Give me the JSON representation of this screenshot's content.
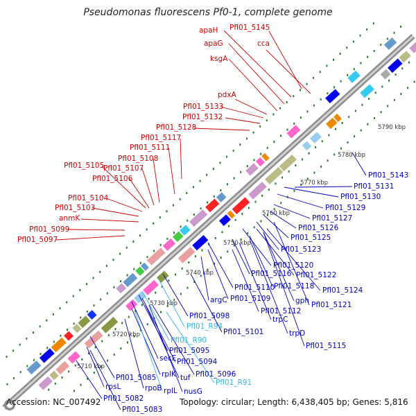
{
  "title": "Pseudomonas fluorescens Pf0-1, complete genome",
  "footer": {
    "accession": "Accession: NC_007492",
    "summary": "Topology: circular; Length: 6,438,405 bp; Genes: 5,816"
  },
  "colors": {
    "upper_label": "#cc0000",
    "lower_label": "#0000bb",
    "rna_label": "#33b5e5",
    "backbone": "#9a9a9a",
    "tick": "#2a7a2a"
  },
  "kbp_ticks": [
    "5710 kbp",
    "5720 kbp",
    "5730 kbp",
    "5740 kbp",
    "5750 kbp",
    "5760 kbp",
    "5770 kbp",
    "5780 kbp",
    "5790 kbp"
  ],
  "upper_labels": [
    "Pfl01_5145",
    "apaH",
    "apaG",
    "cca",
    "ksgA",
    "pdxA",
    "Pfl01_5133",
    "Pfl01_5132",
    "Pfl01_5128",
    "Pfl01_5117",
    "Pfl01_5111",
    "Pfl01_5108",
    "Pfl01_5105",
    "Pfl01_5107",
    "Pfl01_5106",
    "Pfl01_5104",
    "Pfl01_5103",
    "anmK",
    "Pfl01_5099",
    "Pfl01_5097"
  ],
  "lower_labels": [
    "Pfl01_5143",
    "Pfl01_5131",
    "Pfl01_5130",
    "Pfl01_5129",
    "Pfl01_5127",
    "Pfl01_5126",
    "Pfl01_5125",
    "Pfl01_5123",
    "Pfl01_5120",
    "Pfl01_5116",
    "Pfl01_5122",
    "Pfl01_5118",
    "Pfl01_5124",
    "Pfl01_5110",
    "gph",
    "Pfl01_5109",
    "Pfl01_5121",
    "argC",
    "Pfl01_5112",
    "trpC",
    "Pfl01_5098",
    "Pfl01_5101",
    "trpD",
    "Pfl01_R94",
    "Pfl01_5115",
    "Pfl01_R90",
    "Pfl01_5095",
    "secE",
    "Pfl01_5094",
    "rplK",
    "tuf",
    "Pfl01_5096",
    "nusG",
    "rpoB",
    "rplL",
    "Pfl01_R91",
    "Pfl01_5085",
    "rpsL",
    "Pfl01_5082",
    "Pfl01_5083"
  ],
  "rna_labels": [
    "Pfl01_R94",
    "Pfl01_R90",
    "Pfl01_R91"
  ]
}
